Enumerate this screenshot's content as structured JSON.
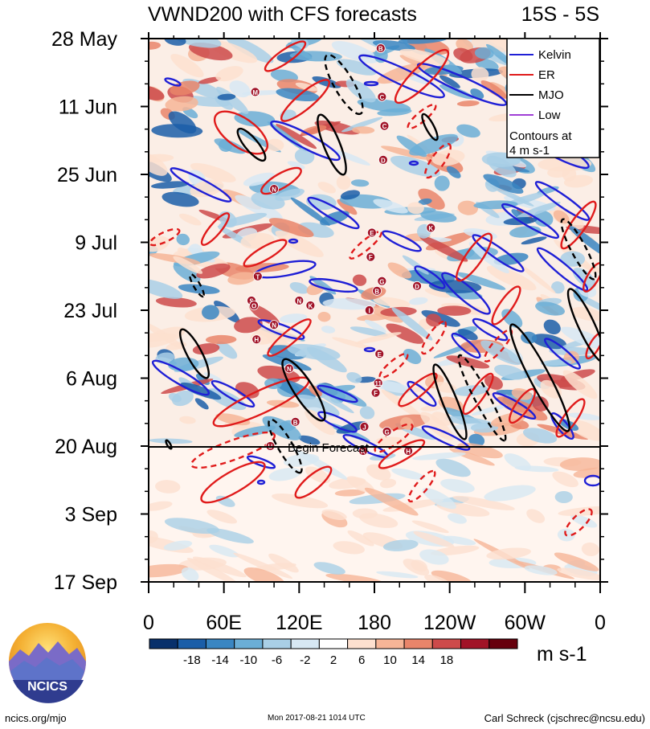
{
  "chart_data": {
    "type": "heatmap",
    "title": "VWND200 with CFS forecasts",
    "region": "15S - 5S",
    "xlabel": "",
    "ylabel": "",
    "x_ticks": [
      "0",
      "60E",
      "120E",
      "180",
      "120W",
      "60W",
      "0"
    ],
    "y_ticks": [
      "28 May",
      "11 Jun",
      "25 Jun",
      "9 Jul",
      "23 Jul",
      "6 Aug",
      "20 Aug",
      "3 Sep",
      "17 Sep"
    ],
    "forecast_line_label": "Begin Forecast",
    "forecast_start": "20 Aug",
    "legend": [
      {
        "name": "Kelvin",
        "color": "#1f1fd6"
      },
      {
        "name": "ER",
        "color": "#e01b1b"
      },
      {
        "name": "MJO",
        "color": "#000000"
      },
      {
        "name": "Low",
        "color": "#a03fd6"
      }
    ],
    "contour_note_line1": "Contours at",
    "contour_note_line2": "4 m s-1",
    "colorbar": {
      "levels": [
        "-18",
        "-14",
        "-10",
        "-6",
        "-2",
        "2",
        "6",
        "10",
        "14",
        "18"
      ],
      "colors": [
        "#08306b",
        "#1b5ea8",
        "#3a86c2",
        "#6baed6",
        "#a9cfe6",
        "#d7e8f3",
        "#ffffff",
        "#fde0cf",
        "#f6b597",
        "#e9856a",
        "#cd4a4a",
        "#a11327",
        "#67000d"
      ],
      "units": "m s-1"
    },
    "storm_labels": [
      {
        "id": "B",
        "lon": 185,
        "day": 2
      },
      {
        "id": "C",
        "lon": 186,
        "day": 12
      },
      {
        "id": "C",
        "lon": 188,
        "day": 18
      },
      {
        "id": "D",
        "lon": 187,
        "day": 25
      },
      {
        "id": "M",
        "lon": 85,
        "day": 11
      },
      {
        "id": "N",
        "lon": 100,
        "day": 31
      },
      {
        "id": "E",
        "lon": 178,
        "day": 40
      },
      {
        "id": "F",
        "lon": 177,
        "day": 45
      },
      {
        "id": "T",
        "lon": 87,
        "day": 49
      },
      {
        "id": "G",
        "lon": 186,
        "day": 50
      },
      {
        "id": "B",
        "lon": 182,
        "day": 52
      },
      {
        "id": "S",
        "lon": 82,
        "day": 54
      },
      {
        "id": "O",
        "lon": 84,
        "day": 55
      },
      {
        "id": "N",
        "lon": 120,
        "day": 54
      },
      {
        "id": "K",
        "lon": 129,
        "day": 55
      },
      {
        "id": "I",
        "lon": 176,
        "day": 56
      },
      {
        "id": "D",
        "lon": 214,
        "day": 51
      },
      {
        "id": "N",
        "lon": 100,
        "day": 59
      },
      {
        "id": "H",
        "lon": 86,
        "day": 62
      },
      {
        "id": "E",
        "lon": 184,
        "day": 65
      },
      {
        "id": "N",
        "lon": 112,
        "day": 68
      },
      {
        "id": "11",
        "lon": 183,
        "day": 71
      },
      {
        "id": "F",
        "lon": 181,
        "day": 73
      },
      {
        "id": "B",
        "lon": 117,
        "day": 79
      },
      {
        "id": "J",
        "lon": 172,
        "day": 80
      },
      {
        "id": "G",
        "lon": 190,
        "day": 81
      },
      {
        "id": "H",
        "lon": 207,
        "day": 85
      },
      {
        "id": "K",
        "lon": 171,
        "day": 85
      },
      {
        "id": "U",
        "lon": 97,
        "day": 84
      },
      {
        "id": "K",
        "lon": 225,
        "day": 39
      }
    ]
  },
  "footer": {
    "logo_text": "NCICS",
    "site": "ncics.org/mjo",
    "timestamp": "Mon 2017-08-21 1014 UTC",
    "author": "Carl Schreck (cjschrec@ncsu.edu)"
  }
}
